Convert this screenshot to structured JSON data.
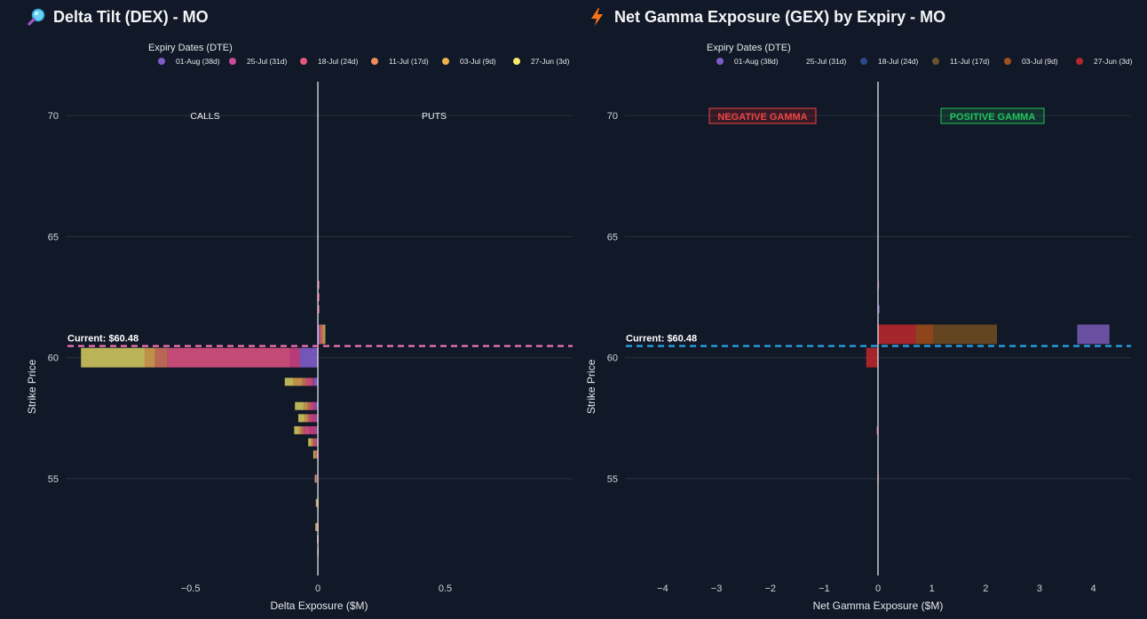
{
  "panels": [
    {
      "id": "dex",
      "title": "Delta Tilt (DEX) - MO",
      "icon": "magnifier-icon",
      "legend_title": "Expiry Dates (DTE)",
      "xlabel": "Delta Exposure ($M)",
      "ylabel": "Strike Price",
      "current_label": "Current: $60.48",
      "side_labels": [
        "CALLS",
        "PUTS"
      ]
    },
    {
      "id": "gex",
      "title": "Net Gamma Exposure (GEX) by Expiry - MO",
      "icon": "lightning-icon",
      "legend_title": "Expiry Dates (DTE)",
      "xlabel": "Net Gamma Exposure ($M)",
      "ylabel": "Strike Price",
      "current_label": "Current: $60.48",
      "side_labels": [
        "NEGATIVE GAMMA",
        "POSITIVE GAMMA"
      ]
    }
  ],
  "chart_data": [
    {
      "type": "bar",
      "orientation": "horizontal",
      "barmode": "stack",
      "title": "Delta Tilt (DEX) - MO",
      "xlabel": "Delta Exposure ($M)",
      "ylabel": "Strike Price",
      "xlim": [
        -0.99,
        1.0
      ],
      "ylim": [
        51.0,
        71.4
      ],
      "xticks": [
        -0.5,
        0,
        0.5
      ],
      "xtick_labels": [
        "−0.5",
        "0",
        "0.5"
      ],
      "yticks": [
        55,
        60,
        65,
        70
      ],
      "grid": true,
      "legend_placement": "top",
      "current_price": 60.48,
      "current_line_color": "#f472b6",
      "strikes": [
        61,
        60,
        59,
        58,
        57.5,
        57,
        56.5,
        56,
        55,
        54,
        53,
        52.5,
        52,
        62,
        62.5,
        63
      ],
      "series": [
        {
          "name": "01-Aug (38d)",
          "color": "#7c5cc4",
          "values": [
            0.005,
            -0.07,
            -0.015,
            -0.01,
            -0.005,
            -0.005,
            0,
            0,
            -0.003,
            0,
            -0.002,
            0,
            0,
            0,
            0,
            0
          ]
        },
        {
          "name": "25-Jul (31d)",
          "color": "#c2407f",
          "values": [
            0.003,
            -0.04,
            -0.01,
            -0.008,
            -0.02,
            -0.03,
            -0.005,
            -0.002,
            -0.004,
            0,
            -0.002,
            0,
            0,
            0.002,
            0.002,
            0.002
          ]
        },
        {
          "name": "18-Jul (24d)",
          "color": "#d44f7d",
          "values": [
            0.003,
            -0.48,
            -0.02,
            -0.012,
            -0.01,
            -0.02,
            -0.01,
            -0.003,
            -0.003,
            -0.002,
            -0.002,
            -0.001,
            -0.001,
            0.003,
            0.003,
            0.002
          ]
        },
        {
          "name": "11-Jul (17d)",
          "color": "#c86f58",
          "values": [
            0.008,
            -0.05,
            -0.015,
            -0.01,
            -0.005,
            -0.01,
            -0.005,
            -0.003,
            0,
            0,
            0,
            0,
            0,
            0,
            0,
            0
          ]
        },
        {
          "name": "03-Jul (9d)",
          "color": "#cf9a4d",
          "values": [
            0.006,
            -0.04,
            -0.035,
            -0.015,
            -0.012,
            -0.01,
            -0.008,
            -0.005,
            0,
            -0.002,
            -0.001,
            0,
            0,
            0,
            0,
            0
          ]
        },
        {
          "name": "27-Jun (3d)",
          "color": "#c9c15c",
          "values": [
            0.004,
            -0.25,
            -0.035,
            -0.035,
            -0.025,
            -0.018,
            -0.01,
            -0.005,
            -0.002,
            -0.004,
            -0.003,
            -0.002,
            -0.001,
            0,
            0,
            0
          ]
        }
      ],
      "legend_dot_colors": [
        "#7c5cc4",
        "#c84b9e",
        "#e3597c",
        "#ec8a5f",
        "#eab04c",
        "#f3e96a"
      ]
    },
    {
      "type": "bar",
      "orientation": "horizontal",
      "barmode": "stack",
      "title": "Net Gamma Exposure (GEX) by Expiry - MO",
      "xlabel": "Net Gamma Exposure ($M)",
      "ylabel": "Strike Price",
      "xlim": [
        -4.7,
        4.7
      ],
      "ylim": [
        51.0,
        71.4
      ],
      "xticks": [
        -4,
        -3,
        -2,
        -1,
        0,
        1,
        2,
        3,
        4
      ],
      "xtick_labels": [
        "−4",
        "−3",
        "−2",
        "−1",
        "0",
        "1",
        "2",
        "3",
        "4"
      ],
      "yticks": [
        55,
        60,
        65,
        70
      ],
      "grid": true,
      "legend_placement": "top",
      "current_price": 60.48,
      "current_line_color": "#22a7e6",
      "strikes": [
        61,
        60,
        57,
        55,
        62,
        62.5,
        63
      ],
      "series": [
        {
          "name": "27-Jun (3d)",
          "color": "#b3262d",
          "values": [
            0.7,
            -0.22,
            -0.02,
            -0.005,
            0,
            0,
            0
          ]
        },
        {
          "name": "03-Jul (9d)",
          "color": "#9a4a1a",
          "values": [
            0.33,
            0,
            0,
            0,
            0,
            0,
            0
          ]
        },
        {
          "name": "11-Jul (17d)",
          "color": "#6b4a22",
          "values": [
            1.18,
            0,
            0,
            0,
            0,
            0,
            0
          ]
        },
        {
          "name": "18-Jul (24d)",
          "color": "#24427a",
          "values": [
            0,
            0,
            0,
            0,
            0.01,
            0,
            0
          ]
        },
        {
          "name": "25-Jul (31d)",
          "color": "#8f3b6a",
          "values": [
            0,
            0,
            -0.01,
            -0.005,
            0,
            0,
            0.005
          ]
        },
        {
          "name": "01-Aug (38d)",
          "color": "#6f53a8",
          "values": [
            0,
            0,
            0,
            0,
            0.02,
            0,
            0
          ]
        }
      ],
      "extra_bars": [
        {
          "strike": 61,
          "start": 3.7,
          "end": 4.3,
          "color": "#6f53a8",
          "series": "01-Aug (38d)"
        }
      ],
      "legend_entries": [
        "01-Aug (38d)",
        "25-Jul (31d)",
        "18-Jul (24d)",
        "11-Jul (17d)",
        "03-Jul (9d)",
        "27-Jun (3d)"
      ],
      "legend_dot_colors": [
        "#7c5cc4",
        "#111827",
        "#2b4a86",
        "#6a5230",
        "#a1521c",
        "#b3262d"
      ]
    }
  ]
}
